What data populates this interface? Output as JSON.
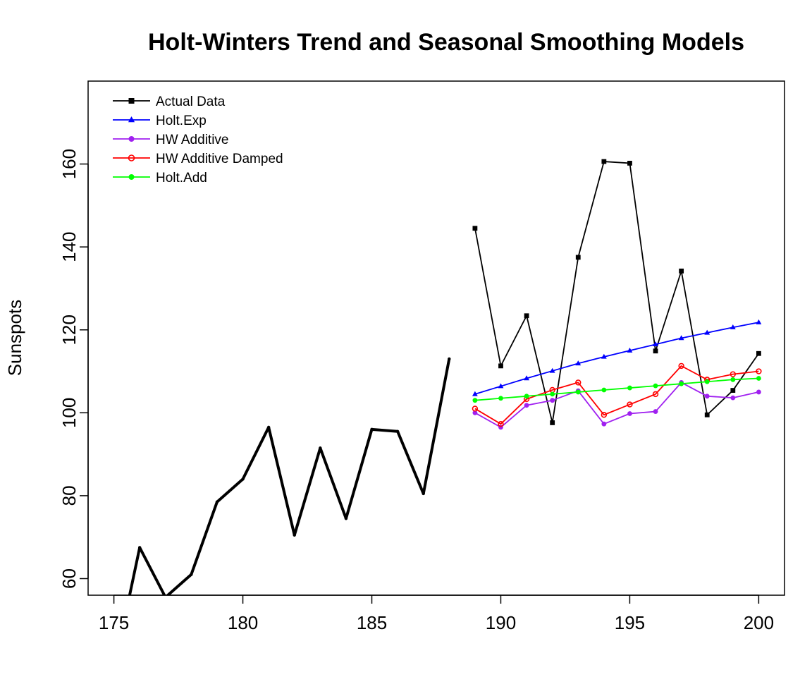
{
  "chart_data": {
    "type": "line",
    "title": "Holt-Winters Trend and Seasonal Smoothing Models",
    "xlabel": "",
    "ylabel": "Sunspots",
    "xlim": [
      174,
      201
    ],
    "ylim": [
      56,
      180
    ],
    "x_ticks": [
      175,
      180,
      185,
      190,
      195,
      200
    ],
    "y_ticks": [
      60,
      80,
      100,
      120,
      140,
      160
    ],
    "grid": false,
    "legend_position": "top-left",
    "history": {
      "name": "",
      "color": "#000000",
      "x": [
        175,
        176,
        177,
        178,
        179,
        180,
        181,
        182,
        183,
        184,
        185,
        186,
        187,
        188
      ],
      "values": [
        38.0,
        67.5,
        55.5,
        61.0,
        78.5,
        84.0,
        96.5,
        70.5,
        91.5,
        74.5,
        96.0,
        95.5,
        80.5,
        113.0
      ]
    },
    "series": [
      {
        "name": "Actual Data",
        "color": "#000000",
        "marker": "square",
        "x": [
          189,
          190,
          191,
          192,
          193,
          194,
          195,
          196,
          197,
          198,
          199,
          200
        ],
        "values": [
          144.5,
          111.3,
          123.4,
          97.6,
          137.5,
          160.6,
          160.2,
          114.9,
          134.2,
          99.5,
          105.4,
          114.3
        ]
      },
      {
        "name": "Holt.Exp",
        "color": "#0000FF",
        "marker": "triangle",
        "x": [
          189,
          190,
          191,
          192,
          193,
          194,
          195,
          196,
          197,
          198,
          199,
          200
        ],
        "values": [
          104.5,
          106.4,
          108.3,
          110.1,
          111.9,
          113.5,
          115.0,
          116.5,
          118.0,
          119.3,
          120.6,
          121.8
        ]
      },
      {
        "name": "HW Additive",
        "color": "#A020F0",
        "marker": "circle",
        "x": [
          189,
          190,
          191,
          192,
          193,
          194,
          195,
          196,
          197,
          198,
          199,
          200
        ],
        "values": [
          100.0,
          96.5,
          101.8,
          103.0,
          105.3,
          97.3,
          99.8,
          100.3,
          107.3,
          104.0,
          103.6,
          105.0
        ]
      },
      {
        "name": "HW Additive Damped",
        "color": "#FF0000",
        "marker": "open-circle",
        "x": [
          189,
          190,
          191,
          192,
          193,
          194,
          195,
          196,
          197,
          198,
          199,
          200
        ],
        "values": [
          101.0,
          97.3,
          103.3,
          105.5,
          107.3,
          99.5,
          102.0,
          104.5,
          111.3,
          108.0,
          109.3,
          110.0
        ]
      },
      {
        "name": "Holt.Add",
        "color": "#00FF00",
        "marker": "circle",
        "x": [
          189,
          190,
          191,
          192,
          193,
          194,
          195,
          196,
          197,
          198,
          199,
          200
        ],
        "values": [
          103.0,
          103.5,
          104.0,
          104.5,
          105.0,
          105.5,
          106.0,
          106.5,
          107.0,
          107.5,
          108.0,
          108.3
        ]
      }
    ]
  }
}
